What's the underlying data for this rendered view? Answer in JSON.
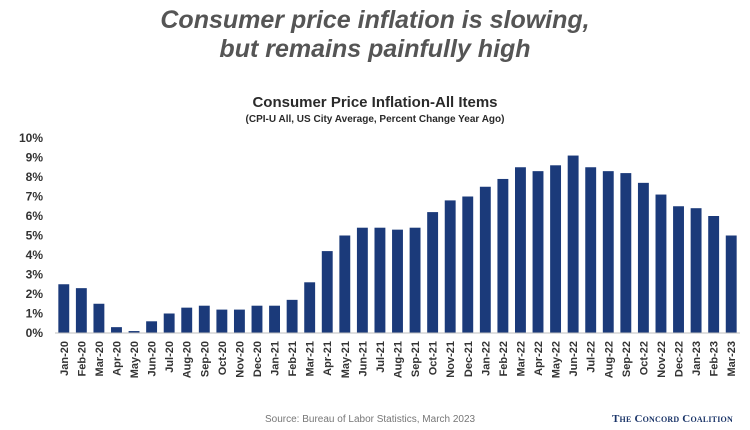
{
  "headline": {
    "line1": "Consumer price inflation is slowing,",
    "line2": "but remains painfully high"
  },
  "source_note": "Source: Bureau of Labor Statistics, March 2023",
  "logo_text": "The Concord Coalition",
  "chart_data": {
    "type": "bar",
    "title": "Consumer Price Inflation-All Items",
    "subtitle": "(CPI-U All, US City Average, Percent Change Year Ago)",
    "xlabel": "",
    "ylabel": "",
    "ylim": [
      0,
      10
    ],
    "yticks": [
      0,
      1,
      2,
      3,
      4,
      5,
      6,
      7,
      8,
      9,
      10
    ],
    "ytick_labels": [
      "0%",
      "1%",
      "2%",
      "3%",
      "4%",
      "5%",
      "6%",
      "7%",
      "8%",
      "9%",
      "10%"
    ],
    "grid": false,
    "bar_color": "#1b3a7a",
    "categories": [
      "Jan-20",
      "Feb-20",
      "Mar-20",
      "Apr-20",
      "May-20",
      "Jun-20",
      "Jul-20",
      "Aug-20",
      "Sep-20",
      "Oct-20",
      "Nov-20",
      "Dec-20",
      "Jan-21",
      "Feb-21",
      "Mar-21",
      "Apr-21",
      "May-21",
      "Jun-21",
      "Jul-21",
      "Aug-21",
      "Sep-21",
      "Oct-21",
      "Nov-21",
      "Dec-21",
      "Jan-22",
      "Feb-22",
      "Mar-22",
      "Apr-22",
      "May-22",
      "Jun-22",
      "Jul-22",
      "Aug-22",
      "Sep-22",
      "Oct-22",
      "Nov-22",
      "Dec-22",
      "Jan-23",
      "Feb-23",
      "Mar-23"
    ],
    "values": [
      2.5,
      2.3,
      1.5,
      0.3,
      0.1,
      0.6,
      1.0,
      1.3,
      1.4,
      1.2,
      1.2,
      1.4,
      1.4,
      1.7,
      2.6,
      4.2,
      5.0,
      5.4,
      5.4,
      5.3,
      5.4,
      6.2,
      6.8,
      7.0,
      7.5,
      7.9,
      8.5,
      8.3,
      8.6,
      9.1,
      8.5,
      8.3,
      8.2,
      7.7,
      7.1,
      6.5,
      6.4,
      6.0,
      5.0
    ]
  }
}
